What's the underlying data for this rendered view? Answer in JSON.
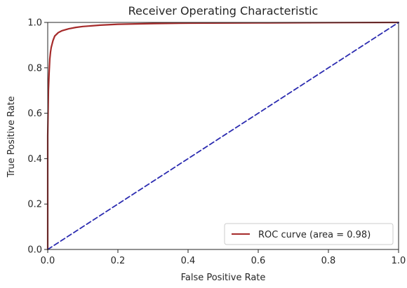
{
  "chart_data": {
    "type": "line",
    "title": "Receiver Operating Characteristic",
    "xlabel": "False Positive Rate",
    "ylabel": "True Positive Rate",
    "xlim": [
      0.0,
      1.0
    ],
    "ylim": [
      0.0,
      1.0
    ],
    "grid": false,
    "legend_position": "bottom-right",
    "x_ticks": [
      "0.0",
      "0.2",
      "0.4",
      "0.6",
      "0.8",
      "1.0"
    ],
    "y_ticks": [
      "0.0",
      "0.2",
      "0.4",
      "0.6",
      "0.8",
      "1.0"
    ],
    "series": [
      {
        "name": "ROC curve (area = 0.98)",
        "color": "#a52a2a",
        "style": "solid",
        "x": [
          0.0,
          0.0,
          0.002,
          0.004,
          0.006,
          0.008,
          0.01,
          0.015,
          0.02,
          0.03,
          0.04,
          0.06,
          0.08,
          0.1,
          0.15,
          0.2,
          0.3,
          0.4,
          0.6,
          0.8,
          1.0
        ],
        "y": [
          0.0,
          0.5,
          0.7,
          0.78,
          0.84,
          0.87,
          0.89,
          0.92,
          0.94,
          0.955,
          0.963,
          0.972,
          0.978,
          0.982,
          0.988,
          0.992,
          0.995,
          0.997,
          0.998,
          0.999,
          1.0
        ]
      },
      {
        "name": "",
        "color": "#2b2bb0",
        "style": "dashed",
        "x": [
          0.0,
          1.0
        ],
        "y": [
          0.0,
          1.0
        ]
      }
    ]
  }
}
